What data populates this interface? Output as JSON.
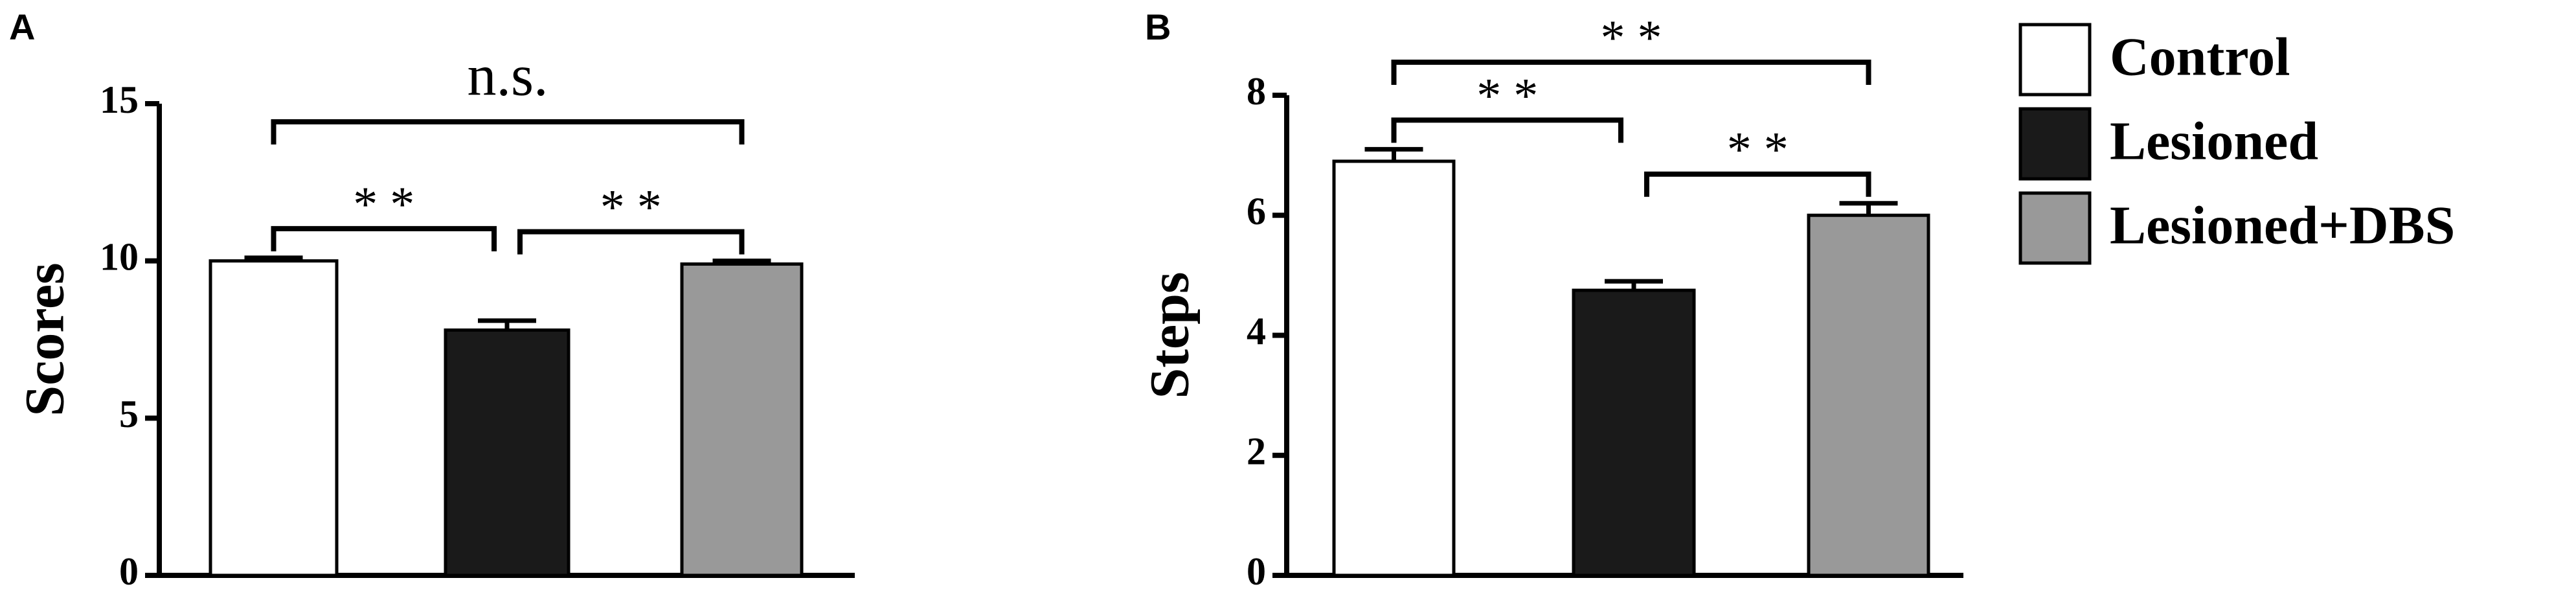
{
  "chart_data": [
    {
      "type": "bar",
      "panel": "A",
      "ylabel": "Scores",
      "ylim": [
        0,
        15
      ],
      "yticks": [
        0,
        5,
        10,
        15
      ],
      "series": [
        {
          "color": "#ffffff",
          "values": [
            10.0
          ],
          "errors": [
            0.1
          ]
        },
        {
          "color": "#1a1a1a",
          "values": [
            7.8
          ],
          "errors": [
            0.3
          ]
        },
        {
          "color": "#999999",
          "values": [
            9.9
          ],
          "errors": [
            0.1
          ]
        }
      ],
      "brackets": [
        {
          "from": 0,
          "to": 2,
          "text": "n.s."
        },
        {
          "from": 0,
          "to": 1,
          "text": "* *"
        },
        {
          "from": 1,
          "to": 2,
          "text": "* *"
        }
      ]
    },
    {
      "type": "bar",
      "panel": "B",
      "ylabel": "Steps",
      "ylim": [
        0,
        8
      ],
      "yticks": [
        0,
        2,
        4,
        6,
        8
      ],
      "series": [
        {
          "name": "Control",
          "color": "#ffffff",
          "values": [
            6.9
          ],
          "errors": [
            0.2
          ]
        },
        {
          "name": "Lesioned",
          "color": "#1a1a1a",
          "values": [
            4.75
          ],
          "errors": [
            0.15
          ]
        },
        {
          "name": "Lesioned+DBS",
          "color": "#999999",
          "values": [
            6.0
          ],
          "errors": [
            0.2
          ]
        }
      ],
      "brackets": [
        {
          "from": 0,
          "to": 2,
          "text": "* *"
        },
        {
          "from": 0,
          "to": 1,
          "text": "* *"
        },
        {
          "from": 1,
          "to": 2,
          "text": "* *"
        }
      ]
    }
  ]
}
